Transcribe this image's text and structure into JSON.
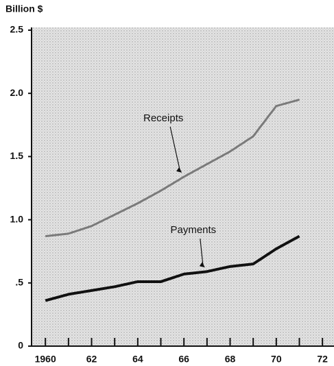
{
  "chart_data": {
    "type": "line",
    "y_axis_label": "Billion $",
    "x": [
      1960,
      1961,
      1962,
      1963,
      1964,
      1965,
      1966,
      1967,
      1968,
      1969,
      1970,
      1971
    ],
    "series": [
      {
        "name": "Receipts",
        "color": "#7a7a7a",
        "values": [
          0.87,
          0.89,
          0.95,
          1.04,
          1.13,
          1.23,
          1.34,
          1.44,
          1.54,
          1.66,
          1.9,
          1.95
        ]
      },
      {
        "name": "Payments",
        "color": "#111111",
        "values": [
          0.36,
          0.41,
          0.44,
          0.47,
          0.51,
          0.51,
          0.57,
          0.59,
          0.63,
          0.65,
          0.77,
          0.87
        ]
      }
    ],
    "xlim": [
      1959.4,
      1972.5
    ],
    "xticks": [
      1960,
      {
        "value": 1962,
        "label": "62"
      },
      {
        "value": 1964,
        "label": "64"
      },
      {
        "value": 1966,
        "label": "66"
      },
      {
        "value": 1968,
        "label": "68"
      },
      {
        "value": 1970,
        "label": "70"
      },
      {
        "value": 1972,
        "label": "72"
      }
    ],
    "xminor_ticks": [
      1961,
      1963,
      1965,
      1967,
      1969,
      1971
    ],
    "ylim": [
      0,
      2.5
    ],
    "yticks": [
      0,
      {
        "value": 0.5,
        "label": ".5"
      },
      {
        "value": 1,
        "label": "1.0"
      },
      1.5,
      {
        "value": 2,
        "label": "2.0"
      },
      2.5
    ],
    "grid": false
  }
}
